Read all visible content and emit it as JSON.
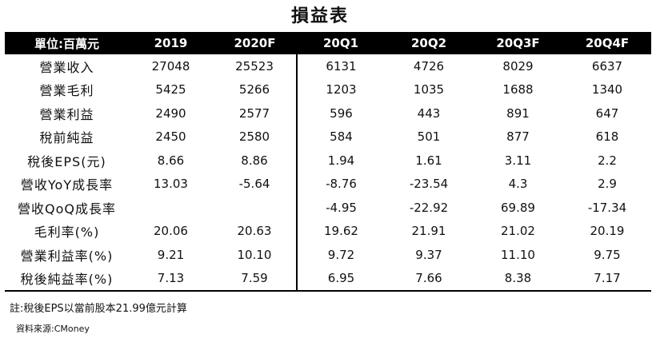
{
  "title": "損益表",
  "table": {
    "headers": [
      "單位:百萬元",
      "2019",
      "2020F",
      "20Q1",
      "20Q2",
      "20Q3F",
      "20Q4F"
    ],
    "rows": [
      {
        "label": "營業收入",
        "values": [
          "27048",
          "25523",
          "6131",
          "4726",
          "8029",
          "6637"
        ]
      },
      {
        "label": "營業毛利",
        "values": [
          "5425",
          "5266",
          "1203",
          "1035",
          "1688",
          "1340"
        ]
      },
      {
        "label": "營業利益",
        "values": [
          "2490",
          "2577",
          "596",
          "443",
          "891",
          "647"
        ]
      },
      {
        "label": "稅前純益",
        "values": [
          "2450",
          "2580",
          "584",
          "501",
          "877",
          "618"
        ]
      },
      {
        "label": "稅後EPS(元)",
        "values": [
          "8.66",
          "8.86",
          "1.94",
          "1.61",
          "3.11",
          "2.2"
        ]
      },
      {
        "label": "營收YoY成長率",
        "values": [
          "13.03",
          "-5.64",
          "-8.76",
          "-23.54",
          "4.3",
          "2.9"
        ]
      },
      {
        "label": "營收QoQ成長率",
        "values": [
          "",
          "",
          "-4.95",
          "-22.92",
          "69.89",
          "-17.34"
        ]
      },
      {
        "label": "毛利率(%)",
        "values": [
          "20.06",
          "20.63",
          "19.62",
          "21.91",
          "21.02",
          "20.19"
        ]
      },
      {
        "label": "營業利益率(%)",
        "values": [
          "9.21",
          "10.10",
          "9.72",
          "9.37",
          "11.10",
          "9.75"
        ]
      },
      {
        "label": "稅後純益率(%)",
        "values": [
          "7.13",
          "7.59",
          "6.95",
          "7.66",
          "8.38",
          "7.17"
        ]
      }
    ]
  },
  "note": "註:稅後EPS以當前股本21.99億元計算",
  "source": "資料來源:CMoney",
  "colors": {
    "header_bg": "#000000",
    "header_text": "#ffffff",
    "text": "#111111"
  }
}
